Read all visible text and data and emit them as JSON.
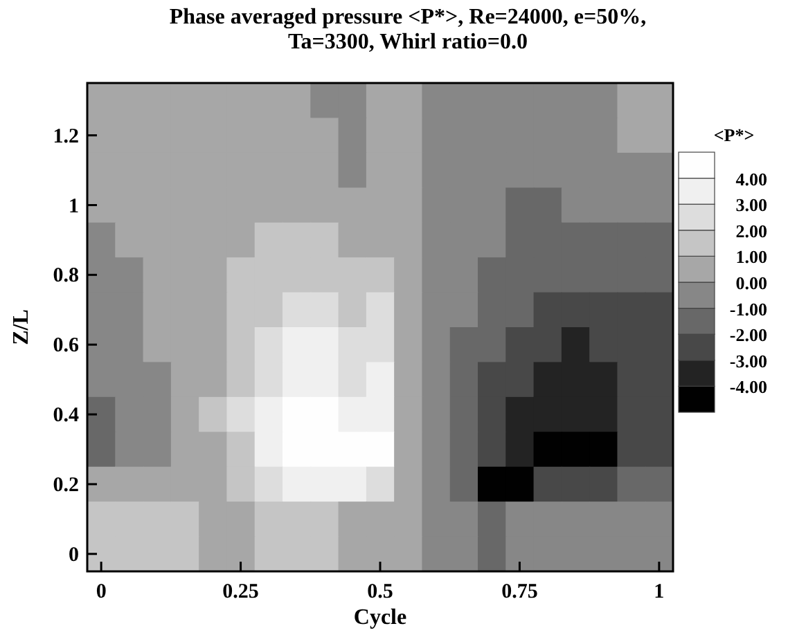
{
  "chart_data": {
    "type": "heatmap",
    "title": "Phase averaged pressure <P*>, Re=24000, e=50%,\nTa=3300, Whirl ratio=0.0",
    "xlabel": "Cycle",
    "ylabel": "Z/L",
    "clabel": "<P*>",
    "categories": [
      "0",
      null,
      null,
      null,
      null,
      "0.25",
      null,
      null,
      null,
      null,
      "0.5",
      null,
      null,
      null,
      null,
      "0.75",
      null,
      null,
      null,
      null,
      "1"
    ],
    "y_categories": [
      null,
      "1.2",
      null,
      "1",
      null,
      "0.8",
      null,
      "0.6",
      null,
      "0.4",
      null,
      "0.2",
      null,
      "0"
    ],
    "clim": [
      -5,
      5
    ],
    "cticks": [
      {
        "value": -4,
        "label": "-4.00"
      },
      {
        "value": -3,
        "label": "-3.00"
      },
      {
        "value": -2,
        "label": "-2.00"
      },
      {
        "value": -1,
        "label": "-1.00"
      },
      {
        "value": 0,
        "label": "0.00"
      },
      {
        "value": 1,
        "label": "1.00"
      },
      {
        "value": 2,
        "label": "2.00"
      },
      {
        "value": 3,
        "label": "3.00"
      },
      {
        "value": 4,
        "label": "4.00"
      }
    ],
    "cells": [
      [
        0.5,
        0.5,
        0.5,
        0.5,
        0.5,
        0.5,
        0.5,
        0.5,
        -0.5,
        -0.5,
        0.5,
        0.5,
        -0.5,
        -0.5,
        -0.5,
        -0.5,
        -0.5,
        -0.5,
        -0.5,
        0.5,
        0.5
      ],
      [
        0.5,
        0.5,
        0.5,
        0.5,
        0.5,
        0.5,
        0.5,
        0.5,
        0.5,
        -0.5,
        0.5,
        0.5,
        -0.5,
        -0.5,
        -0.5,
        -0.5,
        -0.5,
        -0.5,
        -0.5,
        0.5,
        0.5
      ],
      [
        0.5,
        0.5,
        0.5,
        0.5,
        0.5,
        0.5,
        0.5,
        0.5,
        0.5,
        -0.5,
        0.5,
        0.5,
        -0.5,
        -0.5,
        -0.5,
        -0.5,
        -0.5,
        -0.5,
        -0.5,
        -0.5,
        -0.5
      ],
      [
        0.5,
        0.5,
        0.5,
        0.5,
        0.5,
        0.5,
        0.5,
        0.5,
        0.5,
        0.5,
        0.5,
        0.5,
        -0.5,
        -0.5,
        -0.5,
        -1.5,
        -1.5,
        -0.5,
        -0.5,
        -0.5,
        -0.5
      ],
      [
        -0.5,
        0.5,
        0.5,
        0.5,
        0.5,
        0.5,
        1.5,
        1.5,
        1.5,
        0.5,
        0.5,
        0.5,
        -0.5,
        -0.5,
        -0.5,
        -1.5,
        -1.5,
        -1.5,
        -1.5,
        -1.5,
        -1.5
      ],
      [
        -0.5,
        -0.5,
        0.5,
        0.5,
        0.5,
        1.5,
        1.5,
        1.5,
        1.5,
        1.5,
        1.5,
        0.5,
        -0.5,
        -0.5,
        -1.5,
        -1.5,
        -1.5,
        -1.5,
        -1.5,
        -1.5,
        -1.5
      ],
      [
        -0.5,
        -0.5,
        0.5,
        0.5,
        0.5,
        1.5,
        1.5,
        2.5,
        2.5,
        1.5,
        2.5,
        0.5,
        -0.5,
        -0.5,
        -1.5,
        -1.5,
        -2.5,
        -2.5,
        -2.5,
        -2.5,
        -2.5
      ],
      [
        -0.5,
        -0.5,
        0.5,
        0.5,
        0.5,
        1.5,
        2.5,
        3.5,
        3.5,
        2.5,
        2.5,
        0.5,
        -0.5,
        -1.5,
        -1.5,
        -2.5,
        -2.5,
        -3.5,
        -2.5,
        -2.5,
        -2.5
      ],
      [
        -0.5,
        -0.5,
        -0.5,
        0.5,
        0.5,
        1.5,
        2.5,
        3.5,
        3.5,
        2.5,
        3.5,
        0.5,
        -0.5,
        -1.5,
        -2.5,
        -2.5,
        -3.5,
        -3.5,
        -3.5,
        -2.5,
        -2.5
      ],
      [
        -1.5,
        -0.5,
        -0.5,
        0.5,
        1.5,
        2.5,
        3.5,
        4,
        4,
        3.5,
        3.5,
        0.5,
        -0.5,
        -1.5,
        -2.5,
        -3.5,
        -3.5,
        -3.5,
        -3.5,
        -2.5,
        -2.5
      ],
      [
        -1.5,
        -0.5,
        -0.5,
        0.5,
        0.5,
        1.5,
        3.5,
        4,
        4,
        4,
        4,
        0.5,
        -0.5,
        -1.5,
        -2.5,
        -3.5,
        -4,
        -4,
        -4,
        -2.5,
        -2.5
      ],
      [
        0.5,
        0.5,
        0.5,
        0.5,
        0.5,
        1.5,
        2.5,
        3.5,
        3.5,
        3.5,
        2.5,
        0.5,
        -0.5,
        -1.5,
        -4,
        -4,
        -2.5,
        -2.5,
        -2.5,
        -1.5,
        -1.5
      ],
      [
        1.5,
        1.5,
        1.5,
        1.5,
        0.5,
        0.5,
        1.5,
        1.5,
        1.5,
        0.5,
        0.5,
        0.5,
        -0.5,
        -0.5,
        -1.5,
        -0.5,
        -0.5,
        -0.5,
        -0.5,
        -0.5,
        -0.5
      ],
      [
        1.5,
        1.5,
        1.5,
        1.5,
        0.5,
        0.5,
        1.5,
        1.5,
        1.5,
        0.5,
        0.5,
        0.5,
        -0.5,
        -0.5,
        -1.5,
        -0.5,
        -0.5,
        -0.5,
        -0.5,
        -0.5,
        -0.5
      ]
    ]
  }
}
